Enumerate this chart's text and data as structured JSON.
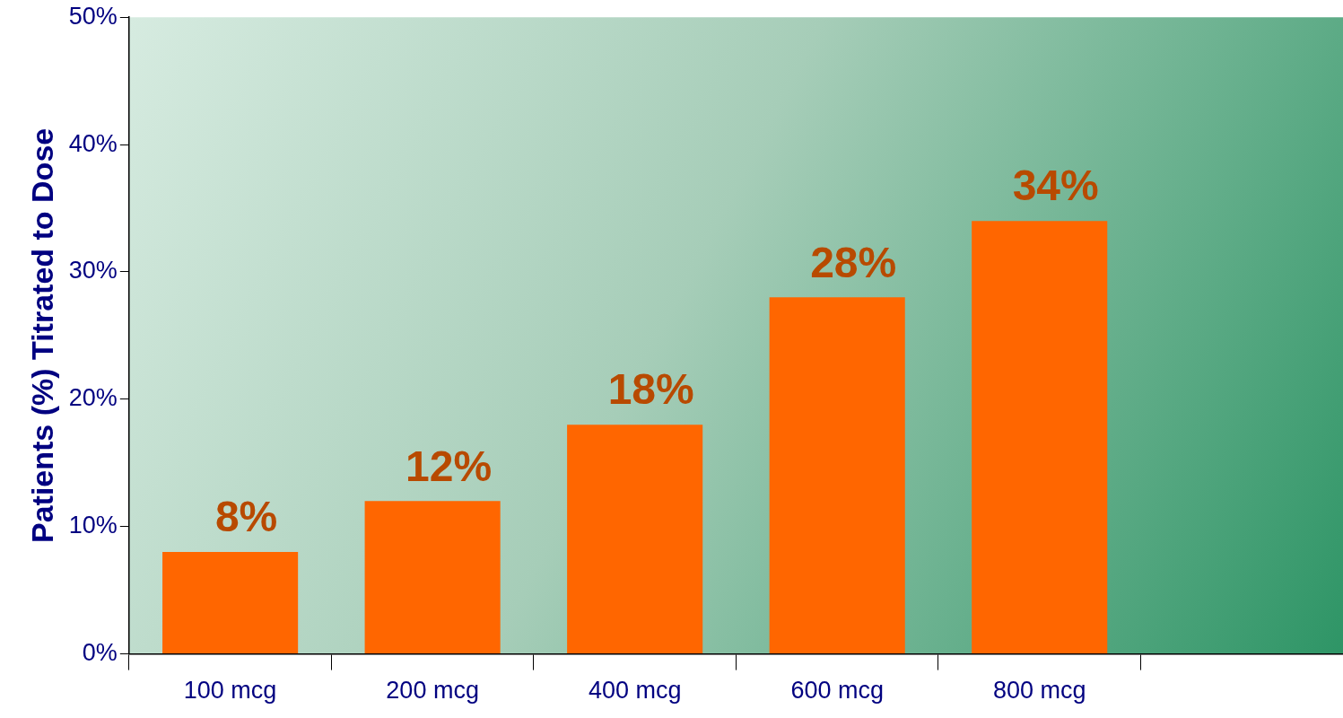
{
  "chart_data": {
    "type": "bar",
    "ylabel": "Patients (%) Titrated to Dose",
    "categories": [
      "100 mcg",
      "200 mcg",
      "400 mcg",
      "600 mcg",
      "800 mcg",
      null
    ],
    "values": [
      8,
      12,
      18,
      28,
      34,
      null
    ],
    "value_labels": [
      "8%",
      "12%",
      "18%",
      "28%",
      "34%",
      null
    ],
    "color": "#ff6600",
    "ylim": [
      0,
      50
    ],
    "yticks": [
      {
        "value": 0,
        "label": "0%"
      },
      {
        "value": 10,
        "label": "10%"
      },
      {
        "value": 20,
        "label": "20%"
      },
      {
        "value": 30,
        "label": "30%"
      },
      {
        "value": 40,
        "label": "40%"
      },
      {
        "value": 50,
        "label": "50%"
      }
    ]
  }
}
